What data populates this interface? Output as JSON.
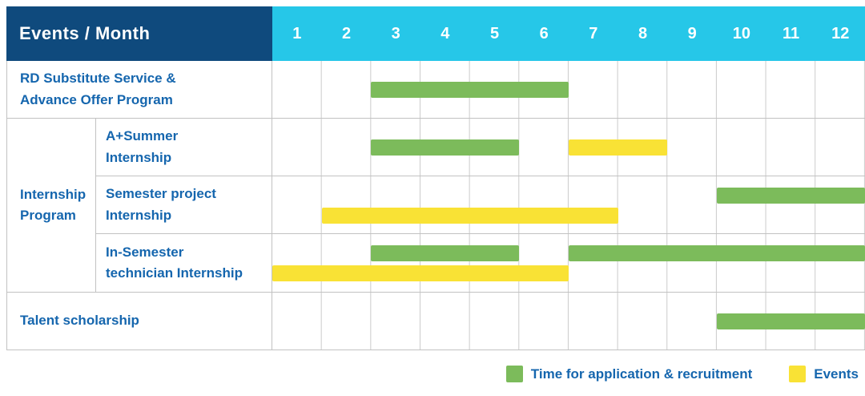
{
  "header": {
    "title": "Events / Month",
    "months": [
      "1",
      "2",
      "3",
      "4",
      "5",
      "6",
      "7",
      "8",
      "9",
      "10",
      "11",
      "12"
    ]
  },
  "colors": {
    "header_bg": "#0f4a7d",
    "month_bg": "#26c7e8",
    "label_text": "#1566ae",
    "grid_line": "#cbcbcb",
    "row_border": "#c2c2c2",
    "recruitment": "#7cbb5b",
    "event": "#f9e235"
  },
  "legend": {
    "items": [
      {
        "key": "recruitment",
        "label": "Time for application & recruitment"
      },
      {
        "key": "event",
        "label": "Events"
      }
    ]
  },
  "chart_data": {
    "type": "gantt",
    "x_unit": "month",
    "x_min": 1,
    "x_max": 12,
    "series": [
      {
        "key": "recruitment",
        "name": "Time for application & recruitment",
        "color": "#7cbb5b"
      },
      {
        "key": "event",
        "name": "Events",
        "color": "#f9e235"
      }
    ],
    "group_label": "Internship Program",
    "group_label_lines": {
      "0": "Internship",
      "1": "Program"
    },
    "rows": [
      {
        "group": null,
        "label": "RD Substitute Service & Advance Offer Program",
        "label_lines": {
          "0": "RD Substitute Service &",
          "1": "Advance Offer Program"
        },
        "lanes": 1,
        "bars": [
          {
            "series": "recruitment",
            "start_month": 3,
            "end_month": 6,
            "lane": 0
          }
        ]
      },
      {
        "group": "Internship Program",
        "label": "A+Summer Internship",
        "label_lines": {
          "0": "A+Summer",
          "1": "Internship"
        },
        "lanes": 1,
        "bars": [
          {
            "series": "recruitment",
            "start_month": 3,
            "end_month": 5,
            "lane": 0
          },
          {
            "series": "event",
            "start_month": 7,
            "end_month": 8,
            "lane": 0
          }
        ]
      },
      {
        "group": "Internship Program",
        "label": "Semester project Internship",
        "label_lines": {
          "0": "Semester project",
          "1": "Internship"
        },
        "lanes": 2,
        "bars": [
          {
            "series": "recruitment",
            "start_month": 10,
            "end_month": 12,
            "lane": 0
          },
          {
            "series": "event",
            "start_month": 2,
            "end_month": 7,
            "lane": 1
          }
        ]
      },
      {
        "group": "Internship Program",
        "label": "In-Semester technician Internship",
        "label_lines": {
          "0": "In-Semester",
          "1": "technician Internship"
        },
        "lanes": 2,
        "bars": [
          {
            "series": "recruitment",
            "start_month": 3,
            "end_month": 5,
            "lane": 0
          },
          {
            "series": "recruitment",
            "start_month": 7,
            "end_month": 12,
            "lane": 0
          },
          {
            "series": "event",
            "start_month": 1,
            "end_month": 6,
            "lane": 1
          }
        ]
      },
      {
        "group": null,
        "label": "Talent scholarship",
        "label_lines": {
          "0": "Talent scholarship"
        },
        "lanes": 1,
        "bars": [
          {
            "series": "recruitment",
            "start_month": 10,
            "end_month": 12,
            "lane": 0
          }
        ]
      }
    ]
  }
}
